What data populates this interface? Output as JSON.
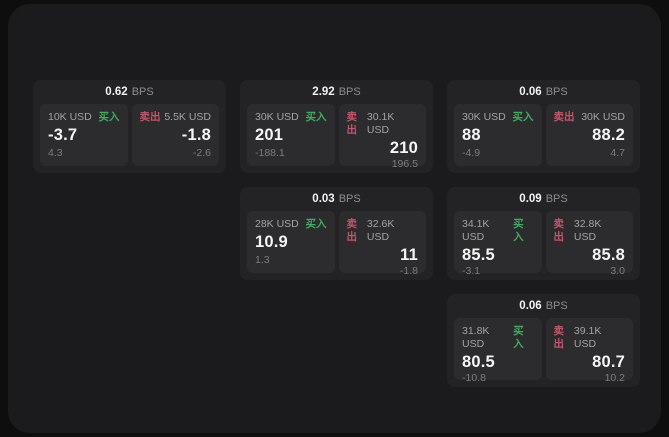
{
  "colors": {
    "page_bg": "#0e0e0f",
    "panel_bg": "#1b1b1d",
    "card_bg": "#232325",
    "tile_bg": "#2c2c2e",
    "text_primary": "#f5f5f5",
    "text_secondary": "#a3a3a5",
    "text_muted": "#7c7c7e",
    "buy_green": "#3fab5e",
    "sell_red": "#c4556a"
  },
  "labels": {
    "bps_unit": "BPS",
    "buy": "买入",
    "sell": "卖出"
  },
  "cards": [
    {
      "row": 1,
      "col": 1,
      "bps": "0.62",
      "buy": {
        "amount": "10K USD",
        "value": "-3.7",
        "delta": "4.3"
      },
      "sell": {
        "amount": "5.5K USD",
        "value": "-1.8",
        "delta": "-2.6"
      }
    },
    {
      "row": 1,
      "col": 2,
      "bps": "2.92",
      "buy": {
        "amount": "30K USD",
        "value": "201",
        "delta": "-188.1"
      },
      "sell": {
        "amount": "30.1K USD",
        "value": "210",
        "delta": "196.5"
      }
    },
    {
      "row": 1,
      "col": 3,
      "bps": "0.06",
      "buy": {
        "amount": "30K USD",
        "value": "88",
        "delta": "-4.9"
      },
      "sell": {
        "amount": "30K USD",
        "value": "88.2",
        "delta": "4.7"
      }
    },
    {
      "row": 2,
      "col": 2,
      "bps": "0.03",
      "buy": {
        "amount": "28K USD",
        "value": "10.9",
        "delta": "1.3"
      },
      "sell": {
        "amount": "32.6K USD",
        "value": "11",
        "delta": "-1.8"
      }
    },
    {
      "row": 2,
      "col": 3,
      "bps": "0.09",
      "buy": {
        "amount": "34.1K USD",
        "value": "85.5",
        "delta": "-3.1"
      },
      "sell": {
        "amount": "32.8K USD",
        "value": "85.8",
        "delta": "3.0"
      }
    },
    {
      "row": 3,
      "col": 3,
      "bps": "0.06",
      "buy": {
        "amount": "31.8K USD",
        "value": "80.5",
        "delta": "-10.8"
      },
      "sell": {
        "amount": "39.1K USD",
        "value": "80.7",
        "delta": "10.2"
      }
    }
  ]
}
